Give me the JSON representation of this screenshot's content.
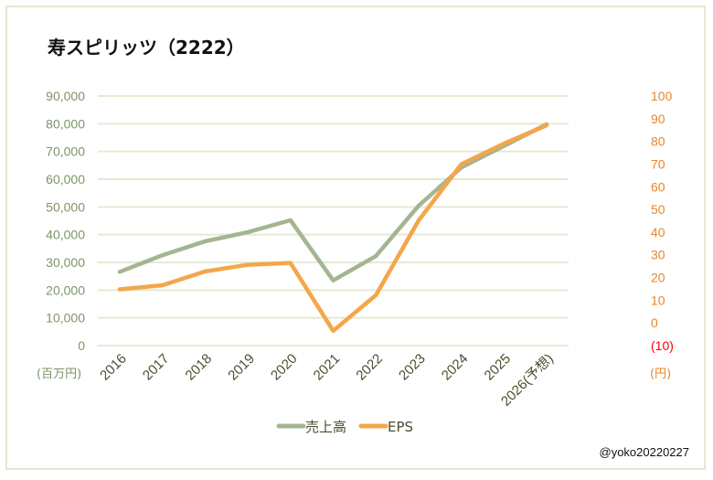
{
  "chart_data": {
    "type": "line",
    "title": "寿スピリッツ（2222）",
    "categories": [
      "2016",
      "2017",
      "2018",
      "2019",
      "2020",
      "2021",
      "2022",
      "2023",
      "2024",
      "2025",
      "2026(予想)"
    ],
    "series": [
      {
        "name": "売上高",
        "axis": "left",
        "color": "#a3b591",
        "values": [
          26600,
          32600,
          37600,
          40900,
          45200,
          23500,
          32300,
          50400,
          64200,
          72000,
          79800
        ]
      },
      {
        "name": "EPS",
        "axis": "right",
        "color": "#f4a64a",
        "values": [
          14.8,
          16.6,
          22.7,
          25.6,
          26.4,
          -3.5,
          12.2,
          45.1,
          69.9,
          79.0,
          87.1
        ]
      }
    ],
    "left_axis": {
      "unit_label": "(百万円)",
      "ylim": [
        0,
        90000
      ],
      "ticks": [
        "0",
        "10,000",
        "20,000",
        "30,000",
        "40,000",
        "50,000",
        "60,000",
        "70,000",
        "80,000",
        "90,000"
      ],
      "color": "#7f9566"
    },
    "right_axis": {
      "unit_label": "(円)",
      "ylim": [
        -10,
        100
      ],
      "ticks": [
        "(10)",
        "0",
        "10",
        "20",
        "30",
        "40",
        "50",
        "60",
        "70",
        "80",
        "90",
        "100"
      ],
      "color": "#e8862a",
      "negative_color": "#ff0000"
    },
    "grid": true,
    "legend": "bottom",
    "watermark": "@yoko20220227"
  }
}
